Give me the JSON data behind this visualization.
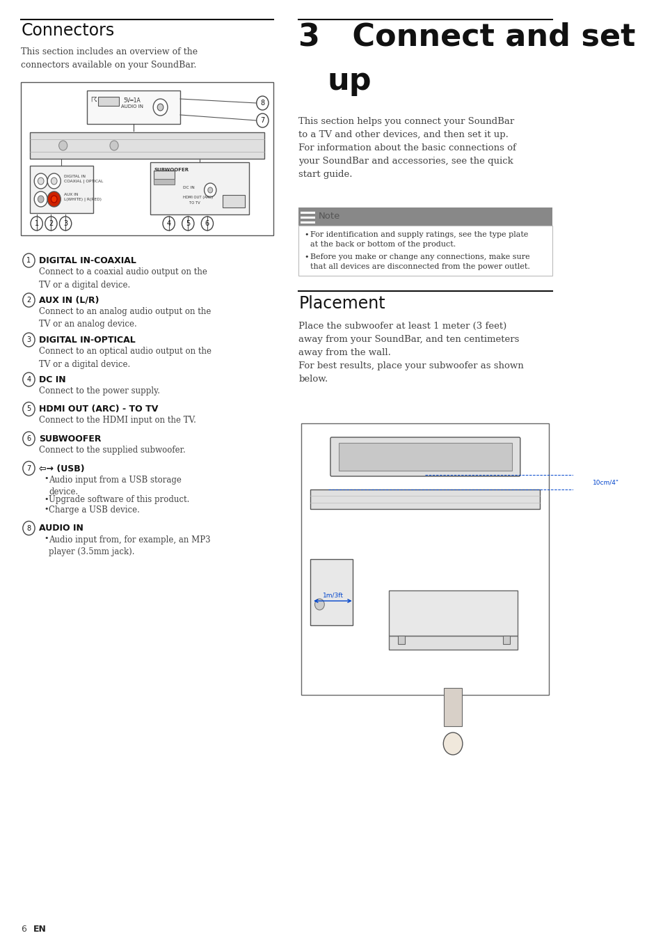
{
  "bg_color": "#ffffff",
  "left_col_title": "Connectors",
  "left_col_intro": "This section includes an overview of the\nconnectors available on your SoundBar.",
  "note_label": "Note",
  "note_bullets": [
    "For identification and supply ratings, see the type plate\nat the back or bottom of the product.",
    "Before you make or change any connections, make sure\nthat all devices are disconnected from the power outlet."
  ],
  "placement_title": "Placement",
  "connectors": [
    {
      "num": "1",
      "title": "DIGITAL IN-COAXIAL",
      "desc": "Connect to a coaxial audio output on the\nTV or a digital device.",
      "bullets": false
    },
    {
      "num": "2",
      "title": "AUX IN (L/R)",
      "desc": "Connect to an analog audio output on the\nTV or an analog device.",
      "bullets": false
    },
    {
      "num": "3",
      "title": "DIGITAL IN-OPTICAL",
      "desc": "Connect to an optical audio output on the\nTV or a digital device.",
      "bullets": false
    },
    {
      "num": "4",
      "title": "DC IN",
      "desc": "Connect to the power supply.",
      "bullets": false
    },
    {
      "num": "5",
      "title": "HDMI OUT (ARC) - TO TV",
      "desc": "Connect to the HDMI input on the TV.",
      "bullets": false
    },
    {
      "num": "6",
      "title": "SUBWOOFER",
      "desc": "Connect to the supplied subwoofer.",
      "bullets": false
    },
    {
      "num": "7",
      "title": "⇦→ (USB)",
      "desc_bullets": [
        "Audio input from a USB storage\ndevice.",
        "Upgrade software of this product.",
        "Charge a USB device."
      ],
      "bullets": true
    },
    {
      "num": "8",
      "title": "AUDIO IN",
      "desc_bullets": [
        "Audio input from, for example, an MP3\nplayer (3.5mm jack)."
      ],
      "bullets": true
    }
  ],
  "footer_num": "6",
  "footer_lang": "EN"
}
